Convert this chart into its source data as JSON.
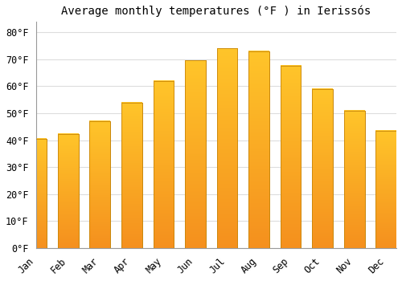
{
  "months": [
    "Jan",
    "Feb",
    "Mar",
    "Apr",
    "May",
    "Jun",
    "Jul",
    "Aug",
    "Sep",
    "Oct",
    "Nov",
    "Dec"
  ],
  "temperatures": [
    40.6,
    42.4,
    47.1,
    54.0,
    62.0,
    69.6,
    74.0,
    73.0,
    67.6,
    59.0,
    50.9,
    43.5
  ],
  "bar_color_top": "#FFC52A",
  "bar_color_bottom": "#F5901E",
  "bar_edge_color": "#C8860A",
  "background_color": "#FFFFFF",
  "plot_bg_color": "#FFFFFF",
  "grid_color": "#DDDDDD",
  "title": "Average monthly temperatures (°F ) in Ierissós",
  "title_fontsize": 10,
  "yticks": [
    0,
    10,
    20,
    30,
    40,
    50,
    60,
    70,
    80
  ],
  "ylim": [
    0,
    84
  ],
  "tick_font": "monospace",
  "tick_fontsize": 8.5,
  "title_font": "monospace",
  "bar_width": 0.65
}
